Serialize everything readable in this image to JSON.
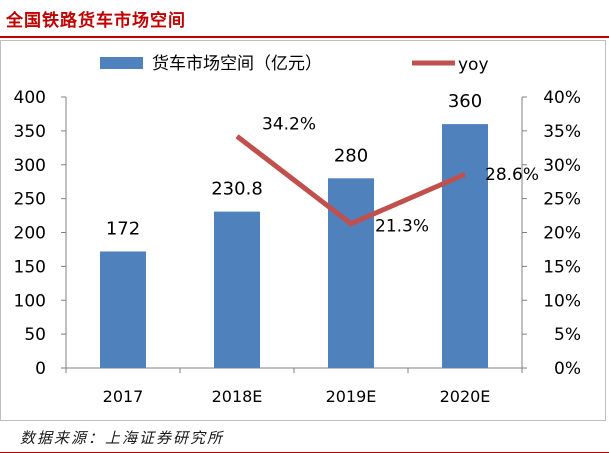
{
  "header": {
    "title": "全国铁路货车市场空间",
    "source": "数据来源：上海证券研究所"
  },
  "colors": {
    "bar": "#4f81bd",
    "line": "#c0504d",
    "title": "#c00000"
  },
  "chart_data": {
    "type": "bar",
    "categories": [
      "2017",
      "2018E",
      "2019E",
      "2020E"
    ],
    "series": [
      {
        "name": "货车市场空间（亿元）",
        "type": "bar",
        "axis": "left",
        "values": [
          172,
          230.8,
          280,
          360
        ],
        "labels": [
          "172",
          "230.8",
          "280",
          "360"
        ]
      },
      {
        "name": "yoy",
        "type": "line",
        "axis": "right",
        "values": [
          null,
          34.2,
          21.3,
          28.6
        ],
        "labels": [
          "",
          "34.2%",
          "21.3%",
          "28.6%"
        ]
      }
    ],
    "y_left": {
      "lim": [
        0,
        400
      ],
      "ticks": [
        "0",
        "50",
        "100",
        "150",
        "200",
        "250",
        "300",
        "350",
        "400"
      ]
    },
    "y_right": {
      "lim": [
        0,
        40
      ],
      "ticks": [
        "0%",
        "5%",
        "10%",
        "15%",
        "20%",
        "25%",
        "30%",
        "35%",
        "40%"
      ]
    },
    "legend": "top",
    "grid": false
  }
}
